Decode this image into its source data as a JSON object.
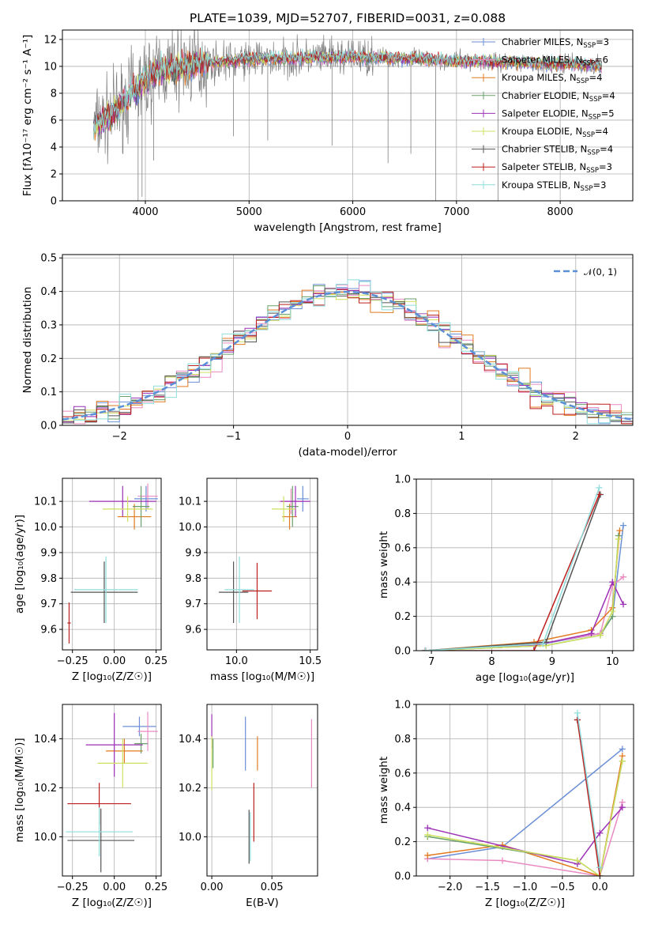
{
  "figure": {
    "title": "PLATE=1039, MJD=52707, FIBERID=0031, z=0.088"
  },
  "colors": {
    "Chabrier MILES": "#6a8fd6",
    "Salpeter MILES": "#e98ac2",
    "Kroupa MILES": "#e27a20",
    "Chabrier ELODIE": "#6aa06a",
    "Salpeter ELODIE": "#9b2fb5",
    "Kroupa ELODIE": "#cfe060",
    "Chabrier STELIB": "#555555",
    "Salpeter STELIB": "#bb1f1f",
    "Kroupa STELIB": "#8fdedd",
    "data": "#808080",
    "normal": "#5b8fd6"
  },
  "chart_data": [
    {
      "id": "spectrum",
      "type": "line",
      "xlabel": "wavelength [Angstrom, rest frame]",
      "ylabel": "Flux [fλ10⁻¹⁷ erg cm⁻² s⁻¹ A⁻¹]",
      "xlim": [
        3200,
        8700
      ],
      "ylim": [
        0,
        12.7
      ],
      "xticks": [
        4000,
        5000,
        6000,
        7000,
        8000
      ],
      "yticks": [
        0,
        2,
        4,
        6,
        8,
        10,
        12
      ],
      "legend_position": "right",
      "legend": [
        {
          "model": "Chabrier MILES",
          "n": "3"
        },
        {
          "model": "Salpeter MILES",
          "n": "6"
        },
        {
          "model": "Kroupa MILES",
          "n": "4"
        },
        {
          "model": "Chabrier ELODIE",
          "n": "4"
        },
        {
          "model": "Salpeter ELODIE",
          "n": "5"
        },
        {
          "model": "Kroupa ELODIE",
          "n": "4"
        },
        {
          "model": "Chabrier STELIB",
          "n": "4"
        },
        {
          "model": "Salpeter STELIB",
          "n": "3"
        },
        {
          "model": "Kroupa STELIB",
          "n": "3"
        }
      ],
      "continuum": [
        [
          3500,
          5.5
        ],
        [
          3600,
          6.0
        ],
        [
          3700,
          6.6
        ],
        [
          3800,
          7.5
        ],
        [
          3900,
          8.2
        ],
        [
          4000,
          9.0
        ],
        [
          4100,
          9.6
        ],
        [
          4300,
          9.9
        ],
        [
          4500,
          10.2
        ],
        [
          5000,
          10.5
        ],
        [
          5500,
          10.6
        ],
        [
          6000,
          10.7
        ],
        [
          6500,
          10.6
        ],
        [
          7000,
          10.4
        ],
        [
          7500,
          10.3
        ],
        [
          8000,
          10.2
        ],
        [
          8400,
          10.0
        ]
      ],
      "spikes": [
        [
          3930,
          0.0
        ],
        [
          3968,
          0.3
        ],
        [
          4080,
          3.0
        ],
        [
          4850,
          4.8
        ],
        [
          5180,
          4.5
        ],
        [
          5800,
          4.1
        ],
        [
          6340,
          2.8
        ],
        [
          6560,
          3.5
        ],
        [
          6800,
          0.0
        ],
        [
          7400,
          0.0
        ]
      ]
    },
    {
      "id": "residuals",
      "type": "bar",
      "xlabel": "(data-model)/error",
      "ylabel": "Normed distribution",
      "xlim": [
        -2.5,
        2.5
      ],
      "ylim": [
        0,
        0.51
      ],
      "xticks": [
        -2,
        -1,
        0,
        1,
        2
      ],
      "yticks": [
        0.0,
        0.1,
        0.2,
        0.3,
        0.4,
        0.5
      ],
      "bin_width": 0.1,
      "normal_label": "𝒩(0, 1)",
      "legend_position": "upper right"
    },
    {
      "id": "age-vs-Z",
      "type": "scatter",
      "xlabel": "Z [log₁₀(Z/Z☉)]",
      "ylabel": "age  [log₁₀(age/yr)]",
      "xlim": [
        -0.31,
        0.28
      ],
      "ylim": [
        9.52,
        10.19
      ],
      "xticks": [
        -0.25,
        0.0,
        0.25
      ],
      "yticks": [
        9.6,
        9.7,
        9.8,
        9.9,
        10.0,
        10.1
      ],
      "points": [
        {
          "model": "Chabrier MILES",
          "x": 0.19,
          "xerr": 0.07,
          "y": 10.11,
          "yerr": 0.05
        },
        {
          "model": "Salpeter MILES",
          "x": 0.2,
          "xerr": 0.06,
          "y": 10.12,
          "yerr": 0.05
        },
        {
          "model": "Kroupa MILES",
          "x": 0.12,
          "xerr": 0.1,
          "y": 10.04,
          "yerr": 0.05
        },
        {
          "model": "Chabrier ELODIE",
          "x": 0.16,
          "xerr": 0.05,
          "y": 10.08,
          "yerr": 0.08
        },
        {
          "model": "Salpeter ELODIE",
          "x": 0.05,
          "xerr": 0.2,
          "y": 10.1,
          "yerr": 0.06
        },
        {
          "model": "Kroupa ELODIE",
          "x": 0.08,
          "xerr": 0.15,
          "y": 10.07,
          "yerr": 0.05
        },
        {
          "model": "Chabrier STELIB",
          "x": -0.06,
          "xerr": 0.2,
          "y": 9.745,
          "yerr": 0.12
        },
        {
          "model": "Salpeter STELIB",
          "x": -0.27,
          "xerr": 0.01,
          "y": 9.625,
          "yerr": 0.08
        },
        {
          "model": "Kroupa STELIB",
          "x": -0.05,
          "xerr": 0.19,
          "y": 9.755,
          "yerr": 0.13
        }
      ]
    },
    {
      "id": "age-vs-mass",
      "type": "scatter",
      "xlabel": "mass [log₁₀(M/M☉)]",
      "ylabel": "",
      "xlim": [
        9.8,
        10.55
      ],
      "ylim": [
        9.52,
        10.19
      ],
      "xticks": [
        10.0,
        10.5
      ],
      "yticks": [
        9.6,
        9.7,
        9.8,
        9.9,
        10.0,
        10.1
      ],
      "points": [
        {
          "model": "Chabrier MILES",
          "x": 10.45,
          "xerr": 0.04,
          "y": 10.11,
          "yerr": 0.05
        },
        {
          "model": "Salpeter MILES",
          "x": 10.37,
          "xerr": 0.08,
          "y": 10.1,
          "yerr": 0.05
        },
        {
          "model": "Kroupa MILES",
          "x": 10.36,
          "xerr": 0.05,
          "y": 10.04,
          "yerr": 0.05
        },
        {
          "model": "Chabrier ELODIE",
          "x": 10.38,
          "xerr": 0.04,
          "y": 10.08,
          "yerr": 0.08
        },
        {
          "model": "Salpeter ELODIE",
          "x": 10.4,
          "xerr": 0.1,
          "y": 10.1,
          "yerr": 0.06
        },
        {
          "model": "Kroupa ELODIE",
          "x": 10.32,
          "xerr": 0.08,
          "y": 10.07,
          "yerr": 0.05
        },
        {
          "model": "Chabrier STELIB",
          "x": 9.98,
          "xerr": 0.1,
          "y": 9.745,
          "yerr": 0.12
        },
        {
          "model": "Salpeter STELIB",
          "x": 10.14,
          "xerr": 0.1,
          "y": 9.75,
          "yerr": 0.11
        },
        {
          "model": "Kroupa STELIB",
          "x": 10.02,
          "xerr": 0.1,
          "y": 9.755,
          "yerr": 0.13
        }
      ]
    },
    {
      "id": "weight-vs-age",
      "type": "line",
      "xlabel": "age  [log₁₀(age/yr)]",
      "ylabel": "mass weight",
      "xlim": [
        6.75,
        10.35
      ],
      "ylim": [
        0,
        1.0
      ],
      "xticks": [
        7,
        8,
        9,
        10
      ],
      "yticks": [
        0.0,
        0.2,
        0.4,
        0.6,
        0.8,
        1.0
      ],
      "series": [
        {
          "model": "Chabrier MILES",
          "x": [
            6.9,
            8.7,
            9.8,
            10.0,
            10.18
          ],
          "y": [
            0.0,
            0.03,
            0.1,
            0.2,
            0.73
          ]
        },
        {
          "model": "Salpeter MILES",
          "x": [
            6.9,
            8.8,
            9.8,
            10.0,
            10.18
          ],
          "y": [
            0.0,
            0.04,
            0.1,
            0.38,
            0.43
          ]
        },
        {
          "model": "Kroupa MILES",
          "x": [
            6.9,
            8.7,
            9.65,
            10.0,
            10.12
          ],
          "y": [
            0.0,
            0.05,
            0.12,
            0.25,
            0.7
          ]
        },
        {
          "model": "Chabrier ELODIE",
          "x": [
            6.9,
            8.9,
            9.8,
            10.0,
            10.1
          ],
          "y": [
            0.0,
            0.03,
            0.09,
            0.2,
            0.67
          ]
        },
        {
          "model": "Salpeter ELODIE",
          "x": [
            6.9,
            8.7,
            9.65,
            10.0,
            10.18
          ],
          "y": [
            0.0,
            0.03,
            0.1,
            0.4,
            0.27
          ]
        },
        {
          "model": "Kroupa ELODIE",
          "x": [
            6.9,
            8.9,
            9.8,
            10.0,
            10.1
          ],
          "y": [
            0.0,
            0.03,
            0.09,
            0.23,
            0.65
          ]
        },
        {
          "model": "Chabrier STELIB",
          "x": [
            6.9,
            8.9,
            9.8
          ],
          "y": [
            0.0,
            0.05,
            0.91
          ]
        },
        {
          "model": "Salpeter STELIB",
          "x": [
            6.9,
            8.7,
            9.78
          ],
          "y": [
            0.0,
            0.0,
            0.91
          ]
        },
        {
          "model": "Kroupa STELIB",
          "x": [
            6.9,
            8.85,
            9.78
          ],
          "y": [
            0.0,
            0.04,
            0.95
          ]
        }
      ]
    },
    {
      "id": "mass-vs-Z",
      "type": "scatter",
      "xlabel": "Z [log₁₀(Z/Z☉)]",
      "ylabel": "mass [log₁₀(M/M☉)]",
      "xlim": [
        -0.31,
        0.28
      ],
      "ylim": [
        9.84,
        10.54
      ],
      "xticks": [
        -0.25,
        0.0,
        0.25
      ],
      "yticks": [
        10.0,
        10.2,
        10.4
      ],
      "points": [
        {
          "model": "Chabrier MILES",
          "x": 0.15,
          "xerr": 0.1,
          "y": 10.45,
          "yerr": 0.04
        },
        {
          "model": "Salpeter MILES",
          "x": 0.2,
          "xerr": 0.06,
          "y": 10.43,
          "yerr": 0.08
        },
        {
          "model": "Kroupa MILES",
          "x": 0.06,
          "xerr": 0.11,
          "y": 10.35,
          "yerr": 0.05
        },
        {
          "model": "Chabrier ELODIE",
          "x": 0.16,
          "xerr": 0.04,
          "y": 10.38,
          "yerr": 0.04
        },
        {
          "model": "Salpeter ELODIE",
          "x": 0.0,
          "xerr": 0.17,
          "y": 10.375,
          "yerr": 0.13
        },
        {
          "model": "Kroupa ELODIE",
          "x": 0.05,
          "xerr": 0.15,
          "y": 10.3,
          "yerr": 0.1
        },
        {
          "model": "Chabrier STELIB",
          "x": -0.08,
          "xerr": 0.2,
          "y": 9.985,
          "yerr": 0.13
        },
        {
          "model": "Salpeter STELIB",
          "x": -0.09,
          "xerr": 0.19,
          "y": 10.135,
          "yerr": 0.085
        },
        {
          "model": "Kroupa STELIB",
          "x": -0.09,
          "xerr": 0.2,
          "y": 10.02,
          "yerr": 0.1
        }
      ]
    },
    {
      "id": "mass-vs-EBV",
      "type": "scatter",
      "xlabel": "E(B-V)",
      "ylabel": "",
      "xlim": [
        -0.004,
        0.088
      ],
      "ylim": [
        9.84,
        10.54
      ],
      "xticks": [
        0.0,
        0.05
      ],
      "yticks": [
        10.0,
        10.2,
        10.4
      ],
      "points": [
        {
          "model": "Chabrier MILES",
          "x": 0.028,
          "y": 10.38,
          "yerr": 0.11
        },
        {
          "model": "Salpeter MILES",
          "x": 0.083,
          "y": 10.34,
          "yerr": 0.14
        },
        {
          "model": "Kroupa MILES",
          "x": 0.038,
          "y": 10.34,
          "yerr": 0.07
        },
        {
          "model": "Chabrier ELODIE",
          "x": 0.001,
          "y": 10.34,
          "yerr": 0.06
        },
        {
          "model": "Salpeter ELODIE",
          "x": 0.0,
          "y": 10.43,
          "yerr": 0.07
        },
        {
          "model": "Kroupa ELODIE",
          "x": 0.0,
          "y": 10.3,
          "yerr": 0.11
        },
        {
          "model": "Chabrier STELIB",
          "x": 0.031,
          "y": 10.0,
          "yerr": 0.11
        },
        {
          "model": "Salpeter STELIB",
          "x": 0.035,
          "y": 10.1,
          "yerr": 0.12
        },
        {
          "model": "Kroupa STELIB",
          "x": 0.032,
          "y": 10.0,
          "yerr": 0.1
        }
      ]
    },
    {
      "id": "weight-vs-Z",
      "type": "line",
      "xlabel": "Z [log₁₀(Z/Z☉)]",
      "ylabel": "mass weight",
      "xlim": [
        -2.45,
        0.45
      ],
      "ylim": [
        0,
        1.0
      ],
      "xticks": [
        -2.0,
        -1.5,
        -1.0,
        -0.5,
        0.0
      ],
      "yticks": [
        0.0,
        0.2,
        0.4,
        0.6,
        0.8,
        1.0
      ],
      "series": [
        {
          "model": "Chabrier MILES",
          "x": [
            -2.3,
            -1.3,
            0.3
          ],
          "y": [
            0.1,
            0.17,
            0.74
          ]
        },
        {
          "model": "Salpeter MILES",
          "x": [
            -2.3,
            -1.3,
            0.0,
            0.3
          ],
          "y": [
            0.1,
            0.09,
            0.0,
            0.43
          ]
        },
        {
          "model": "Kroupa MILES",
          "x": [
            -2.3,
            -1.3,
            0.0,
            0.3
          ],
          "y": [
            0.12,
            0.18,
            0.0,
            0.7
          ]
        },
        {
          "model": "Chabrier ELODIE",
          "x": [
            -2.3,
            -0.3,
            0.0,
            0.3
          ],
          "y": [
            0.23,
            0.09,
            0.0,
            0.67
          ]
        },
        {
          "model": "Salpeter ELODIE",
          "x": [
            -2.3,
            -0.3,
            0.0,
            0.3
          ],
          "y": [
            0.28,
            0.07,
            0.25,
            0.4
          ]
        },
        {
          "model": "Kroupa ELODIE",
          "x": [
            -2.3,
            -0.3,
            0.0,
            0.3
          ],
          "y": [
            0.24,
            0.09,
            0.0,
            0.67
          ]
        },
        {
          "model": "Chabrier STELIB",
          "x": [
            -0.3,
            0.0
          ],
          "y": [
            0.91,
            0.05
          ]
        },
        {
          "model": "Salpeter STELIB",
          "x": [
            -0.3,
            0.0
          ],
          "y": [
            0.91,
            0.0
          ]
        },
        {
          "model": "Kroupa STELIB",
          "x": [
            -0.3,
            0.0
          ],
          "y": [
            0.95,
            0.05
          ]
        }
      ]
    }
  ]
}
